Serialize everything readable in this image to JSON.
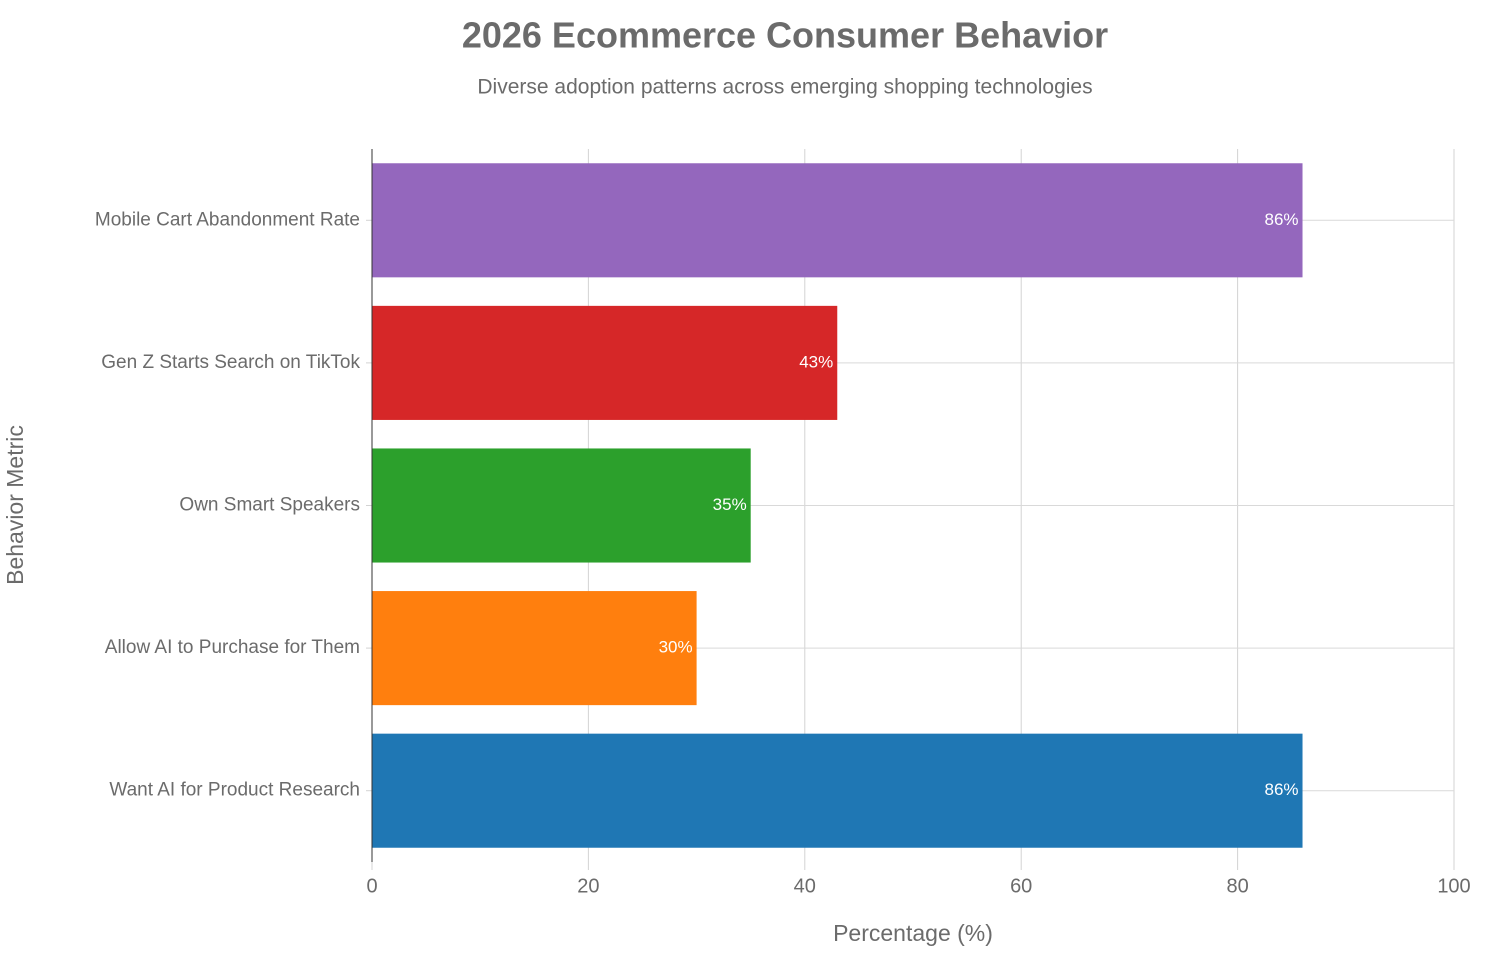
{
  "chart_data": {
    "type": "bar",
    "orientation": "horizontal",
    "title": "2026 Ecommerce Consumer Behavior",
    "subtitle": "Diverse adoption patterns across emerging shopping technologies",
    "x_label": "Percentage (%)",
    "y_label": "Behavior Metric",
    "categories": [
      "Mobile Cart Abandonment Rate",
      "Gen Z Starts Search on TikTok",
      "Own Smart Speakers",
      "Allow AI to Purchase for Them",
      "Want AI for Product Research"
    ],
    "values": [
      86,
      43,
      35,
      30,
      86
    ],
    "value_labels": [
      "86%",
      "43%",
      "35%",
      "30%",
      "86%"
    ],
    "colors": [
      "#9467bd",
      "#d62728",
      "#2ca02c",
      "#ff7f0e",
      "#1f77b4"
    ],
    "xlim": [
      0,
      100
    ],
    "xticks": [
      0,
      20,
      40,
      60,
      80,
      100
    ],
    "grid": true
  }
}
